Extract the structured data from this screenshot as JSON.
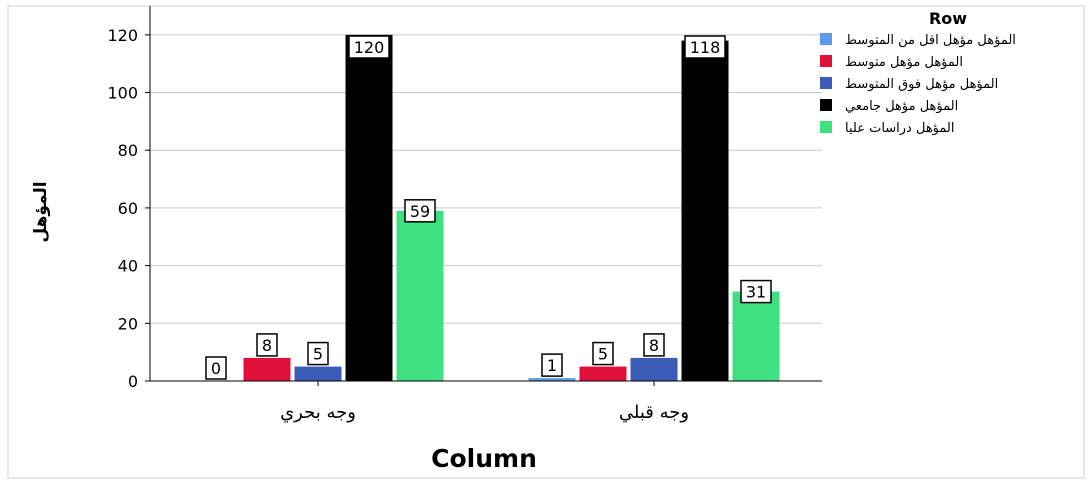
{
  "chart_data": {
    "type": "bar",
    "xlabel": "Column",
    "ylabel": "المؤهل",
    "categories": [
      "وجه بحري",
      "وجه قبلي"
    ],
    "ylim": [
      0,
      130
    ],
    "yticks": [
      0,
      20,
      40,
      60,
      80,
      100,
      120
    ],
    "grid": true,
    "legend": {
      "title": "Row",
      "placement": "top-right"
    },
    "series": [
      {
        "name": "المؤهل مؤهل اقل من المتوسط",
        "color": "#5b9bea",
        "values": [
          0,
          1
        ]
      },
      {
        "name": "المؤهل مؤهل متوسط",
        "color": "#e0103a",
        "values": [
          8,
          5
        ]
      },
      {
        "name": "المؤهل مؤهل فوق المتوسط",
        "color": "#3c5cb8",
        "values": [
          5,
          8
        ]
      },
      {
        "name": "المؤهل مؤهل جامعي",
        "color": "#000000",
        "values": [
          120,
          118
        ]
      },
      {
        "name": "المؤهل دراسات عليا",
        "color": "#3fe080",
        "values": [
          59,
          31
        ]
      }
    ]
  }
}
